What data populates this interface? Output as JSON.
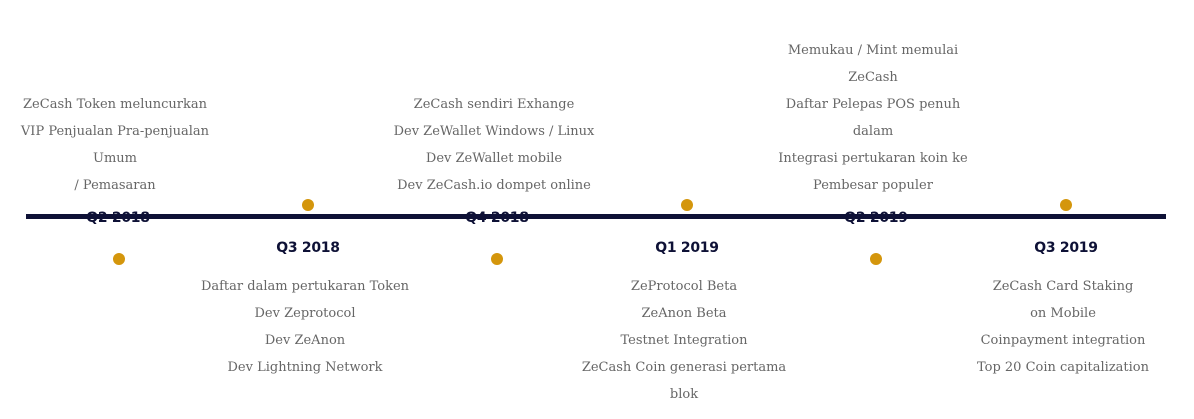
{
  "accent_color": "#d4960c",
  "line_color": "#0e1136",
  "milestones": [
    {
      "period": "Q2 2018",
      "items": [
        "ZeCash Token meluncurkan",
        "VIP Penjualan Pra-penjualan",
        "Umum",
        "/ Pemasaran"
      ]
    },
    {
      "period": "Q3 2018",
      "items": [
        "Daftar dalam pertukaran Token",
        "Dev Zeprotocol",
        "Dev ZeAnon",
        "Dev Lightning Network"
      ]
    },
    {
      "period": "Q4 2018",
      "items": [
        "ZeCash sendiri Exhange",
        "Dev ZeWallet Windows / Linux",
        "Dev ZeWallet mobile",
        "Dev ZeCash.io dompet online"
      ]
    },
    {
      "period": "Q1 2019",
      "items": [
        "ZeProtocol Beta",
        "ZeAnon Beta",
        "Testnet Integration",
        "ZeCash Coin generasi pertama",
        "blok"
      ]
    },
    {
      "period": "Q2 2019",
      "items": [
        "Memukau / Mint memulai",
        "ZeCash",
        "Daftar Pelepas POS penuh",
        "dalam",
        "Integrasi pertukaran koin ke",
        "Pembesar populer"
      ]
    },
    {
      "period": "Q3 2019",
      "items": [
        "ZeCash Card Staking",
        "on Mobile",
        "Coinpayment integration",
        "Top 20 Coin capitalization"
      ]
    }
  ]
}
